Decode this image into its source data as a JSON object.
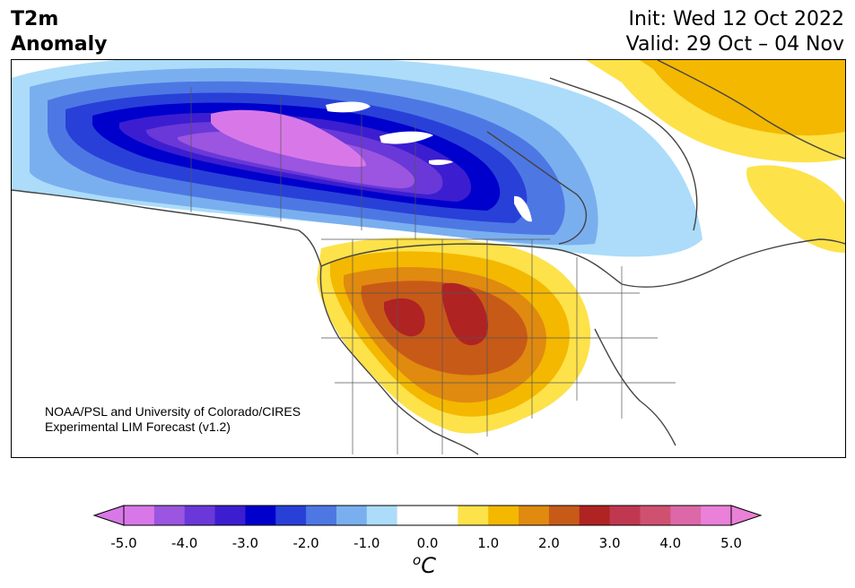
{
  "header": {
    "variable_line1": "T2m",
    "variable_line2": "Anomaly",
    "init": "Init: Wed 12 Oct 2022",
    "valid": "Valid: 29 Oct – 04 Nov"
  },
  "credit": {
    "line1": "NOAA/PSL and University of Colorado/CIRES",
    "line2": "Experimental LIM Forecast (v1.2)"
  },
  "colorbar": {
    "unit_base": "C",
    "unit_sup": "o",
    "tick_labels": [
      "-5.0",
      "-4.0",
      "-3.0",
      "-2.0",
      "-1.0",
      "0.0",
      "1.0",
      "2.0",
      "3.0",
      "4.0",
      "5.0"
    ],
    "colors": [
      "#d878e8",
      "#9b55e0",
      "#6a38d8",
      "#3c1ed0",
      "#0000cc",
      "#2840d8",
      "#4d78e4",
      "#7aafef",
      "#acdcfa",
      "#ffffff",
      "#ffffff",
      "#fde24a",
      "#f4b800",
      "#e08a10",
      "#c85a18",
      "#b02323",
      "#c03850",
      "#d05070",
      "#dd68a8",
      "#ea80d8"
    ],
    "low_extend_color": "#d878e8",
    "high_extend_color": "#ea80d8"
  },
  "map": {
    "region": "North America",
    "cold_anomaly_region": "western and central Canada",
    "warm_anomaly_region": "southwestern United States"
  }
}
